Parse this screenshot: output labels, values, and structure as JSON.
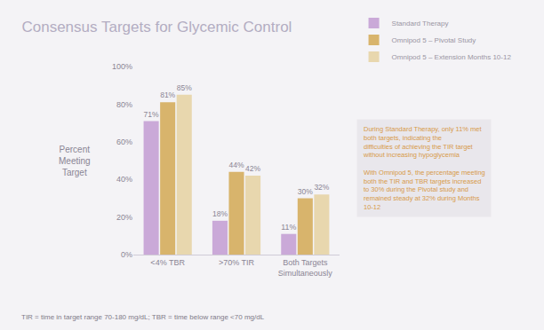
{
  "chart_data": {
    "type": "bar",
    "title": "Consensus Targets for Glycemic Control",
    "y_label": "Percent Meeting Target",
    "categories": [
      "<4% TBR",
      ">70% TIR",
      "Both Targets Simultaneously"
    ],
    "series": [
      {
        "name": "Standard Therapy",
        "color": "#caa9d8",
        "values": [
          71,
          18,
          11
        ],
        "value_labels": [
          "71%",
          "18%",
          "11%"
        ]
      },
      {
        "name": "Omnipod 5 – Pivotal Study",
        "color": "#d8b46c",
        "values": [
          81,
          44,
          30
        ],
        "value_labels": [
          "81%",
          "44%",
          "30%"
        ]
      },
      {
        "name": "Omnipod 5 – Extension Months 10-12",
        "color": "#e8d7ae",
        "values": [
          85,
          42,
          32
        ],
        "value_labels": [
          "85%",
          "42%",
          "32%"
        ]
      }
    ],
    "ylim": [
      0,
      100
    ],
    "yticks": [
      {
        "value": 0,
        "label": "0%"
      },
      {
        "value": 20,
        "label": "20%"
      },
      {
        "value": 40,
        "label": "40%"
      },
      {
        "value": 60,
        "label": "60%"
      },
      {
        "value": 80,
        "label": "80%"
      },
      {
        "value": 100,
        "label": "100%"
      }
    ],
    "grid": false,
    "legend": "top right",
    "data_labels": true,
    "annotations": [
      "During Standard Therapy, only 11% met both targets, indicating the difficulties of achieving the TIR target without increasing hypoglycemia",
      "With Omnipod 5, the percentage meeting both the TIR and TBR targets increased to 30% during the Pivotal study and remained steady at 32% during Months 10-12"
    ],
    "footnote": "TIR = time in target range 70-180 mg/dL; TBR = time below range <70 mg/dL"
  }
}
